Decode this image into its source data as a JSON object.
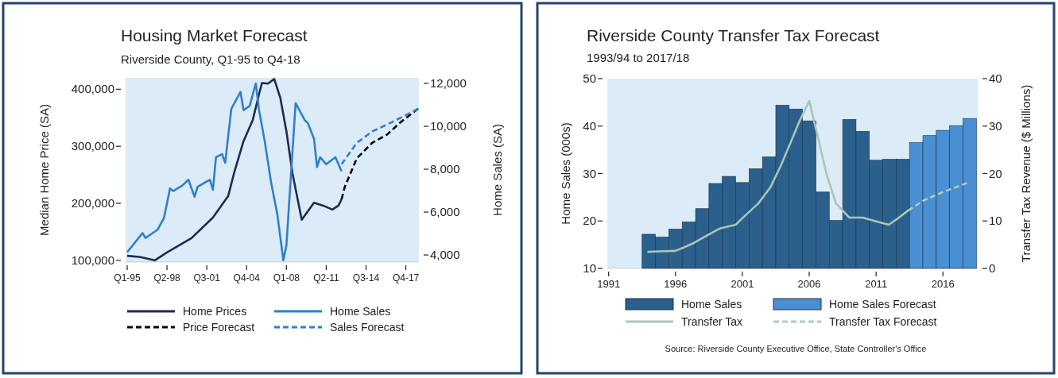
{
  "chart_data": [
    {
      "type": "line",
      "title": "Housing Market Forecast",
      "subtitle": "Riverside County, Q1-95 to Q4-18",
      "ylabel": "Median Home Price (SA)",
      "y2label": "Home Sales (SA)",
      "legend": "bottom",
      "categories": [
        "Q1-95",
        null,
        null,
        null,
        null,
        null,
        null,
        null,
        null,
        null,
        null,
        null,
        null,
        "Q2-98",
        null,
        null,
        null,
        null,
        null,
        null,
        null,
        null,
        null,
        null,
        null,
        null,
        "Q3-01",
        null,
        null,
        null,
        null,
        null,
        null,
        null,
        null,
        null,
        null,
        null,
        null,
        "Q4-04",
        null,
        null,
        null,
        null,
        null,
        null,
        null,
        null,
        null,
        null,
        null,
        null,
        "Q1-08",
        null,
        null,
        null,
        null,
        null,
        null,
        null,
        null,
        null,
        null,
        null,
        null,
        "Q2-11",
        null,
        null,
        null,
        null,
        null,
        null,
        null,
        null,
        null,
        null,
        null,
        null,
        "Q3-14",
        null,
        null,
        null,
        null,
        null,
        null,
        null,
        null,
        null,
        null,
        null,
        null,
        "Q4-17",
        null,
        null,
        null,
        null
      ],
      "ylim": [
        97000,
        420000
      ],
      "yticks": [
        {
          "value": 100000,
          "label": "100,000"
        },
        {
          "value": 200000,
          "label": "200,000"
        },
        {
          "value": 300000,
          "label": "300,000"
        },
        {
          "value": 400000,
          "label": "400,000"
        }
      ],
      "y2lim": [
        3670,
        12260
      ],
      "y2ticks": [
        {
          "value": 4000,
          "label": "4,000"
        },
        {
          "value": 6000,
          "label": "6,000"
        },
        {
          "value": 8000,
          "label": "8,000"
        },
        {
          "value": 10000,
          "label": "10,000"
        },
        {
          "value": 12000,
          "label": "12,000"
        }
      ],
      "series": [
        {
          "name": "Home Prices",
          "color": "#1c2b4f",
          "line_style": "solid",
          "values": [
            108000,
            null,
            null,
            null,
            106000,
            null,
            null,
            null,
            null,
            100000,
            null,
            null,
            null,
            114000,
            null,
            null,
            null,
            null,
            null,
            null,
            null,
            139000,
            null,
            null,
            null,
            null,
            null,
            null,
            175000,
            null,
            null,
            null,
            null,
            213000,
            null,
            255000,
            null,
            null,
            309000,
            null,
            null,
            346000,
            null,
            390000,
            411000,
            null,
            410000,
            null,
            418000,
            null,
            385000,
            null,
            326000,
            null,
            252000,
            null,
            null,
            171000,
            null,
            null,
            null,
            201000,
            null,
            null,
            196000,
            null,
            null,
            189000,
            null,
            196000,
            207000,
            null,
            null,
            null,
            null,
            null,
            null,
            null,
            null,
            null,
            null,
            null,
            null,
            null,
            null,
            null,
            null,
            null,
            null,
            null,
            null,
            null,
            null,
            null,
            null,
            null
          ]
        },
        {
          "name": "Home Sales",
          "color": "#2f80c8",
          "line_style": "solid",
          "axis": "y2",
          "values": [
            4130,
            null,
            null,
            null,
            null,
            5020,
            4790,
            null,
            null,
            null,
            5190,
            null,
            5720,
            null,
            7110,
            6980,
            null,
            null,
            7240,
            null,
            7510,
            null,
            6710,
            7180,
            null,
            null,
            null,
            7510,
            7040,
            8560,
            null,
            8700,
            8300,
            null,
            10810,
            null,
            null,
            11610,
            10750,
            null,
            10950,
            null,
            12000,
            10810,
            null,
            9230,
            null,
            7370,
            null,
            5920,
            null,
            3750,
            4460,
            null,
            null,
            11080,
            null,
            null,
            10280,
            10150,
            null,
            9420,
            8100,
            8560,
            null,
            8230,
            null,
            null,
            8560,
            null,
            7900,
            null,
            null,
            null,
            null,
            null,
            null,
            null,
            null,
            null,
            null,
            null,
            null,
            null,
            null,
            null,
            null,
            null,
            null,
            null,
            null,
            null,
            null,
            null,
            null,
            null
          ]
        },
        {
          "name": "Price Forecast",
          "color": "#000000",
          "line_style": "dashed",
          "values": [
            null,
            null,
            null,
            null,
            null,
            null,
            null,
            null,
            null,
            null,
            null,
            null,
            null,
            null,
            null,
            null,
            null,
            null,
            null,
            null,
            null,
            null,
            null,
            null,
            null,
            null,
            null,
            null,
            null,
            null,
            null,
            null,
            null,
            null,
            null,
            null,
            null,
            null,
            null,
            null,
            null,
            null,
            null,
            null,
            null,
            null,
            null,
            null,
            null,
            null,
            null,
            null,
            null,
            null,
            null,
            null,
            null,
            null,
            null,
            null,
            null,
            null,
            null,
            null,
            null,
            null,
            null,
            null,
            null,
            null,
            207000,
            228000,
            null,
            null,
            null,
            279000,
            null,
            null,
            null,
            null,
            306000,
            null,
            null,
            null,
            null,
            321000,
            null,
            null,
            null,
            341000,
            null,
            null,
            null,
            null,
            null,
            366000
          ]
        },
        {
          "name": "Sales Forecast",
          "color": "#2f7fd0",
          "line_style": "dashed",
          "axis": "y2",
          "values": [
            null,
            null,
            null,
            null,
            null,
            null,
            null,
            null,
            null,
            null,
            null,
            null,
            null,
            null,
            null,
            null,
            null,
            null,
            null,
            null,
            null,
            null,
            null,
            null,
            null,
            null,
            null,
            null,
            null,
            null,
            null,
            null,
            null,
            null,
            null,
            null,
            null,
            null,
            null,
            null,
            null,
            null,
            null,
            null,
            null,
            null,
            null,
            null,
            null,
            null,
            null,
            null,
            null,
            null,
            null,
            null,
            null,
            null,
            null,
            null,
            null,
            null,
            null,
            null,
            null,
            null,
            null,
            null,
            null,
            null,
            8230,
            null,
            null,
            null,
            null,
            9230,
            null,
            null,
            null,
            null,
            9760,
            null,
            null,
            null,
            null,
            10090,
            null,
            null,
            null,
            null,
            null,
            null,
            null,
            null,
            null,
            10810
          ]
        }
      ]
    },
    {
      "type": "bar",
      "title": "Riverside County Transfer Tax Forecast",
      "subtitle": "1993/94 to 2017/18",
      "ylabel": "Home Sales (000s)",
      "y2label": "Transfer Tax Revenue ($ Millions)",
      "legend": "bottom",
      "annotations": [
        "Source: Riverside County Executive Office, State Controller's Office"
      ],
      "xlim": [
        1990.9,
        2018.6
      ],
      "xticks": [
        1991,
        1996,
        2001,
        2006,
        2011,
        2016
      ],
      "ylim": [
        10,
        50
      ],
      "yticks": [
        10,
        20,
        30,
        40,
        50
      ],
      "y2lim": [
        0,
        40
      ],
      "y2ticks": [
        0,
        10,
        20,
        30,
        40
      ],
      "series": [
        {
          "name": "Home Sales",
          "color": "#2b5f8c",
          "x": [
            1994,
            1995,
            1996,
            1997,
            1998,
            1999,
            2000,
            2001,
            2002,
            2003,
            2004,
            2005,
            2006,
            2007,
            2008,
            2009,
            2010,
            2011,
            2012,
            2013
          ],
          "values": [
            17.2,
            16.6,
            18.3,
            19.8,
            22.6,
            27.9,
            29.4,
            28.1,
            31.0,
            33.5,
            44.4,
            43.6,
            41.1,
            26.1,
            20.1,
            41.4,
            38.9,
            32.8,
            33.0,
            33.0
          ]
        },
        {
          "name": "Home Sales Forecast",
          "color": "#4a8fd2",
          "x": [
            2014,
            2015,
            2016,
            2017,
            2018
          ],
          "values": [
            36.5,
            38.0,
            39.1,
            40.1,
            41.6
          ]
        },
        {
          "name": "Transfer Tax",
          "type": "line",
          "axis": "y2",
          "color": "#a9c6b8",
          "line_style": "solid",
          "x": [
            1993.9,
            1994.9,
            1996.0,
            1996.6,
            1997.4,
            1998.4,
            1999.3,
            2000.5,
            2001.2,
            2002.2,
            2003.1,
            2003.9,
            2004.6,
            2005.3,
            2006.0,
            2006.7,
            2007.3,
            2008.0,
            2009.0,
            2010.0,
            2011.0,
            2011.95,
            2012.7,
            2013.4
          ],
          "values": [
            3.5,
            3.6,
            3.7,
            4.4,
            5.4,
            7.0,
            8.4,
            9.2,
            11.1,
            13.7,
            17.1,
            21.8,
            26.5,
            31.2,
            35.3,
            27.1,
            19.8,
            13.7,
            10.7,
            10.7,
            9.9,
            9.2,
            10.7,
            12.2
          ]
        },
        {
          "name": "Transfer Tax Forecast",
          "type": "line",
          "axis": "y2",
          "color": "#b3c9bf",
          "line_style": "dashed",
          "x": [
            2013.4,
            2014.6,
            2016.0,
            2017.8
          ],
          "values": [
            12.2,
            14.4,
            16.1,
            18.0
          ]
        }
      ]
    }
  ]
}
